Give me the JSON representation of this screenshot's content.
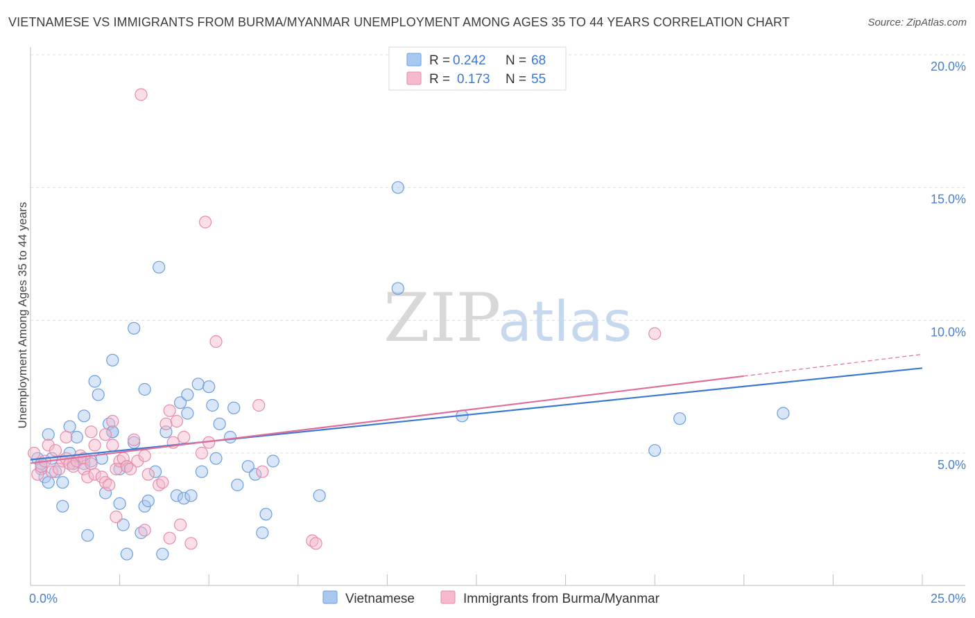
{
  "chart_data": {
    "type": "scatter",
    "title": "VIETNAMESE VS IMMIGRANTS FROM BURMA/MYANMAR UNEMPLOYMENT AMONG AGES 35 TO 44 YEARS CORRELATION CHART",
    "source": "Source: ZipAtlas.com",
    "ylabel": "Unemployment Among Ages 35 to 44 years",
    "xlim": [
      0,
      25
    ],
    "ylim": [
      0.5,
      21.0
    ],
    "x_tick_labels": [
      {
        "value": 0,
        "label": "0.0%"
      },
      {
        "value": 25,
        "label": "25.0%"
      }
    ],
    "y_tick_labels": [
      {
        "value": 5,
        "label": "5.0%"
      },
      {
        "value": 10,
        "label": "10.0%"
      },
      {
        "value": 15,
        "label": "15.0%"
      },
      {
        "value": 20,
        "label": "20.0%"
      }
    ],
    "gridlines_y": [
      5,
      10,
      15,
      20
    ],
    "watermark": {
      "zip": "ZIP",
      "atlas": "atlas"
    },
    "legend": [
      {
        "label": "R = ",
        "r": "0.242",
        "nlabel": "N = ",
        "n": "68",
        "color": "#a9c8f0"
      },
      {
        "label": "R = ",
        "r": "0.173",
        "nlabel": "N = ",
        "n": "55",
        "color": "#f5b8cc"
      }
    ],
    "series": [
      {
        "name": "Vietnamese",
        "color": "#a9c8f0",
        "stroke": "#6b9ddc",
        "trend_color": "#3b78d0",
        "trend": {
          "x0": 0,
          "y0": 4.75,
          "x1": 25,
          "y1": 8.2
        },
        "points": [
          [
            0.2,
            4.8
          ],
          [
            0.3,
            4.4
          ],
          [
            0.3,
            4.6
          ],
          [
            0.4,
            4.1
          ],
          [
            0.5,
            5.7
          ],
          [
            0.5,
            3.9
          ],
          [
            0.6,
            4.8
          ],
          [
            0.7,
            4.3
          ],
          [
            0.9,
            3.0
          ],
          [
            0.9,
            3.9
          ],
          [
            1.1,
            6.0
          ],
          [
            1.1,
            5.0
          ],
          [
            1.2,
            4.6
          ],
          [
            1.3,
            5.6
          ],
          [
            1.5,
            4.6
          ],
          [
            1.5,
            6.4
          ],
          [
            1.6,
            1.9
          ],
          [
            1.7,
            4.7
          ],
          [
            1.8,
            7.7
          ],
          [
            1.9,
            7.2
          ],
          [
            2.0,
            4.8
          ],
          [
            2.1,
            3.5
          ],
          [
            2.2,
            6.1
          ],
          [
            2.3,
            5.8
          ],
          [
            2.3,
            5.8
          ],
          [
            2.3,
            8.5
          ],
          [
            2.5,
            4.4
          ],
          [
            2.5,
            3.1
          ],
          [
            2.6,
            2.3
          ],
          [
            2.7,
            1.2
          ],
          [
            2.7,
            4.5
          ],
          [
            2.9,
            5.4
          ],
          [
            2.9,
            9.7
          ],
          [
            3.1,
            2.0
          ],
          [
            3.2,
            3.0
          ],
          [
            3.2,
            7.4
          ],
          [
            3.3,
            3.2
          ],
          [
            3.5,
            4.3
          ],
          [
            3.6,
            12.0
          ],
          [
            3.7,
            1.2
          ],
          [
            3.8,
            5.8
          ],
          [
            4.1,
            3.4
          ],
          [
            4.2,
            6.9
          ],
          [
            4.3,
            3.3
          ],
          [
            4.4,
            7.2
          ],
          [
            4.4,
            6.5
          ],
          [
            4.5,
            3.4
          ],
          [
            4.7,
            7.6
          ],
          [
            4.8,
            4.3
          ],
          [
            5.0,
            7.5
          ],
          [
            5.1,
            6.8
          ],
          [
            5.2,
            4.8
          ],
          [
            5.3,
            6.1
          ],
          [
            5.6,
            5.6
          ],
          [
            5.7,
            6.7
          ],
          [
            5.8,
            3.8
          ],
          [
            6.1,
            4.5
          ],
          [
            6.3,
            4.2
          ],
          [
            6.5,
            2.0
          ],
          [
            6.6,
            2.7
          ],
          [
            6.8,
            4.7
          ],
          [
            8.1,
            3.4
          ],
          [
            10.3,
            15.0
          ],
          [
            10.3,
            11.2
          ],
          [
            12.1,
            6.4
          ],
          [
            17.5,
            5.1
          ],
          [
            18.2,
            6.3
          ],
          [
            21.1,
            6.5
          ]
        ]
      },
      {
        "name": "Immigrants from Burma/Myanmar",
        "color": "#f5b8cc",
        "stroke": "#e68aa8",
        "trend_color": "#e06c98",
        "trend": {
          "x0": 0,
          "y0": 4.62,
          "x1": 20,
          "y1": 7.9
        },
        "trend_dashed": {
          "x0": 20,
          "y0": 7.9,
          "x1": 25,
          "y1": 8.72
        },
        "points": [
          [
            0.1,
            5.0
          ],
          [
            0.2,
            4.2
          ],
          [
            0.3,
            4.5
          ],
          [
            0.4,
            4.7
          ],
          [
            0.5,
            5.3
          ],
          [
            0.6,
            4.3
          ],
          [
            0.7,
            5.1
          ],
          [
            0.8,
            4.4
          ],
          [
            0.9,
            4.7
          ],
          [
            1.0,
            4.8
          ],
          [
            1.0,
            5.6
          ],
          [
            1.1,
            4.6
          ],
          [
            1.2,
            4.5
          ],
          [
            1.3,
            4.7
          ],
          [
            1.4,
            4.9
          ],
          [
            1.5,
            4.8
          ],
          [
            1.5,
            4.4
          ],
          [
            1.6,
            4.1
          ],
          [
            1.7,
            4.6
          ],
          [
            1.7,
            5.8
          ],
          [
            1.8,
            5.3
          ],
          [
            1.8,
            4.2
          ],
          [
            2.0,
            4.1
          ],
          [
            2.1,
            5.7
          ],
          [
            2.1,
            3.9
          ],
          [
            2.2,
            3.8
          ],
          [
            2.3,
            5.3
          ],
          [
            2.3,
            6.2
          ],
          [
            2.4,
            2.6
          ],
          [
            2.4,
            4.4
          ],
          [
            2.5,
            4.7
          ],
          [
            2.6,
            4.8
          ],
          [
            2.7,
            4.5
          ],
          [
            2.8,
            4.4
          ],
          [
            2.9,
            5.5
          ],
          [
            3.0,
            4.7
          ],
          [
            3.1,
            18.5
          ],
          [
            3.2,
            4.9
          ],
          [
            3.2,
            2.1
          ],
          [
            3.3,
            4.2
          ],
          [
            3.6,
            3.8
          ],
          [
            3.7,
            3.9
          ],
          [
            3.8,
            6.1
          ],
          [
            3.9,
            6.6
          ],
          [
            3.9,
            1.8
          ],
          [
            4.0,
            5.4
          ],
          [
            4.1,
            6.2
          ],
          [
            4.2,
            2.3
          ],
          [
            4.3,
            5.6
          ],
          [
            4.5,
            1.6
          ],
          [
            4.8,
            5.0
          ],
          [
            4.9,
            13.7
          ],
          [
            5.0,
            5.4
          ],
          [
            5.2,
            9.2
          ],
          [
            6.4,
            6.8
          ]
        ]
      }
    ],
    "extra_pink_points": [
      [
        6.5,
        4.3
      ],
      [
        7.9,
        1.7
      ],
      [
        8.0,
        1.6
      ],
      [
        17.5,
        9.5
      ]
    ]
  }
}
